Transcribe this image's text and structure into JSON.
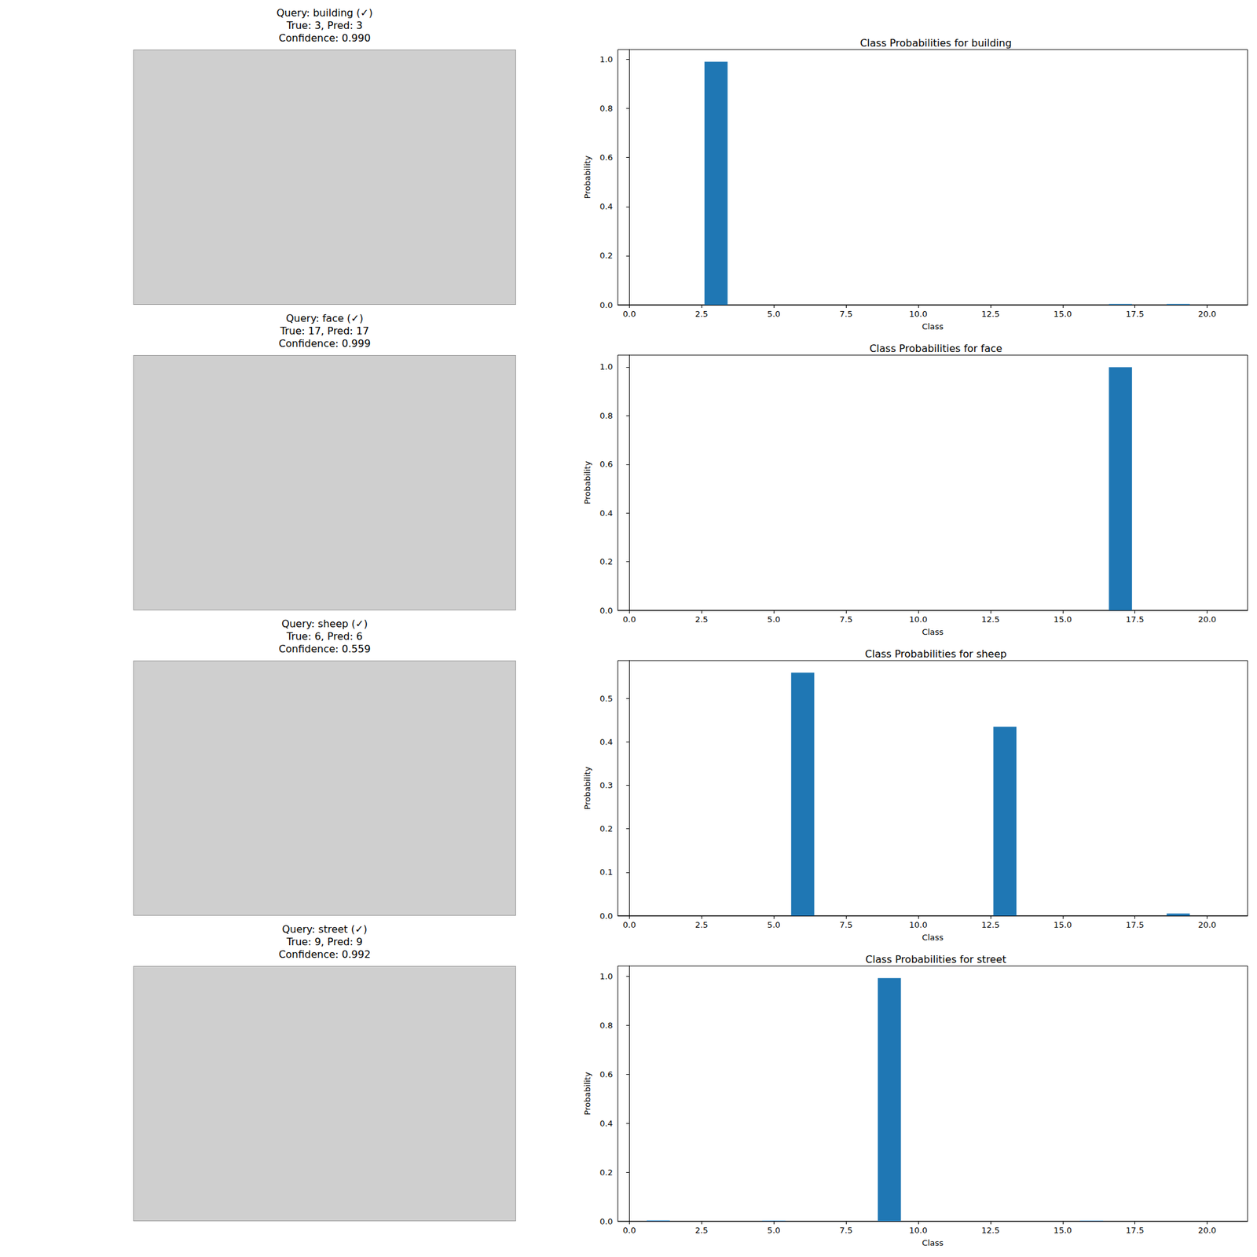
{
  "chart_data": [
    {
      "type": "bar",
      "title": "Class Probabilities for building",
      "x_label": "Class",
      "y_label": "Probability",
      "x": [
        0,
        1,
        2,
        3,
        4,
        5,
        6,
        7,
        8,
        9,
        10,
        11,
        12,
        13,
        14,
        15,
        16,
        17,
        18,
        19,
        20,
        21
      ],
      "values": [
        0,
        0,
        0,
        0.99,
        0,
        0,
        0,
        0,
        0,
        0,
        0,
        0,
        0,
        0,
        0,
        0,
        0,
        0.003,
        0,
        0.003,
        0,
        0
      ],
      "color": "#1f77b4",
      "grid": false,
      "xlim": [
        -0.4,
        21.4
      ],
      "xticks": [
        {
          "value": 0,
          "label": "0.0"
        },
        2.5,
        {
          "value": 5,
          "label": "5.0"
        },
        7.5,
        {
          "value": 10,
          "label": "10.0"
        },
        12.5,
        {
          "value": 15,
          "label": "15.0"
        },
        17.5,
        {
          "value": 20,
          "label": "20.0"
        }
      ],
      "ylim": [
        0,
        1.0395
      ],
      "yticks": [
        {
          "value": 0,
          "label": "0.0"
        },
        0.2,
        0.4,
        0.6,
        0.8,
        {
          "value": 1,
          "label": "1.0"
        }
      ]
    },
    {
      "type": "bar",
      "title": "Class Probabilities for face",
      "x_label": "Class",
      "y_label": "Probability",
      "x": [
        0,
        1,
        2,
        3,
        4,
        5,
        6,
        7,
        8,
        9,
        10,
        11,
        12,
        13,
        14,
        15,
        16,
        17,
        18,
        19,
        20,
        21
      ],
      "values": [
        0,
        0,
        0,
        0,
        0,
        0,
        0,
        0,
        0,
        0,
        0,
        0,
        0,
        0,
        0,
        0,
        0,
        0.999,
        0,
        0,
        0,
        0
      ],
      "color": "#1f77b4",
      "grid": false,
      "xlim": [
        -0.4,
        21.4
      ],
      "xticks": [
        {
          "value": 0,
          "label": "0.0"
        },
        2.5,
        {
          "value": 5,
          "label": "5.0"
        },
        7.5,
        {
          "value": 10,
          "label": "10.0"
        },
        12.5,
        {
          "value": 15,
          "label": "15.0"
        },
        17.5,
        {
          "value": 20,
          "label": "20.0"
        }
      ],
      "ylim": [
        0,
        1.049
      ],
      "yticks": [
        {
          "value": 0,
          "label": "0.0"
        },
        0.2,
        0.4,
        0.6,
        0.8,
        {
          "value": 1,
          "label": "1.0"
        }
      ]
    },
    {
      "type": "bar",
      "title": "Class Probabilities for sheep",
      "x_label": "Class",
      "y_label": "Probability",
      "x": [
        0,
        1,
        2,
        3,
        4,
        5,
        6,
        7,
        8,
        9,
        10,
        11,
        12,
        13,
        14,
        15,
        16,
        17,
        18,
        19,
        20,
        21
      ],
      "values": [
        0,
        0,
        0,
        0,
        0,
        0,
        0.559,
        0,
        0,
        0,
        0,
        0,
        0,
        0.435,
        0,
        0,
        0,
        0,
        0,
        0.005,
        0,
        0
      ],
      "color": "#1f77b4",
      "grid": false,
      "xlim": [
        -0.4,
        21.4
      ],
      "xticks": [
        {
          "value": 0,
          "label": "0.0"
        },
        2.5,
        {
          "value": 5,
          "label": "5.0"
        },
        7.5,
        {
          "value": 10,
          "label": "10.0"
        },
        12.5,
        {
          "value": 15,
          "label": "15.0"
        },
        17.5,
        {
          "value": 20,
          "label": "20.0"
        }
      ],
      "ylim": [
        0,
        0.587
      ],
      "yticks": [
        {
          "value": 0,
          "label": "0.0"
        },
        0.1,
        0.2,
        0.3,
        0.4,
        0.5
      ]
    },
    {
      "type": "bar",
      "title": "Class Probabilities for street",
      "x_label": "Class",
      "y_label": "Probability",
      "x": [
        0,
        1,
        2,
        3,
        4,
        5,
        6,
        7,
        8,
        9,
        10,
        11,
        12,
        13,
        14,
        15,
        16,
        17,
        18,
        19,
        20,
        21
      ],
      "values": [
        0,
        0.003,
        0,
        0,
        0,
        0.002,
        0,
        0,
        0,
        0.992,
        0,
        0,
        0,
        0,
        0,
        0,
        0.002,
        0,
        0,
        0,
        0,
        0
      ],
      "color": "#1f77b4",
      "grid": false,
      "xlim": [
        -0.4,
        21.4
      ],
      "xticks": [
        {
          "value": 0,
          "label": "0.0"
        },
        2.5,
        {
          "value": 5,
          "label": "5.0"
        },
        7.5,
        {
          "value": 10,
          "label": "10.0"
        },
        12.5,
        {
          "value": 15,
          "label": "15.0"
        },
        17.5,
        {
          "value": 20,
          "label": "20.0"
        }
      ],
      "ylim": [
        0,
        1.0416
      ],
      "yticks": [
        {
          "value": 0,
          "label": "0.0"
        },
        0.2,
        0.4,
        0.6,
        0.8,
        {
          "value": 1,
          "label": "1.0"
        }
      ]
    }
  ],
  "images": [
    {
      "title": "Query: building (✓)\nTrue: 3, Pred: 3\nConfidence: 0.990"
    },
    {
      "title": "Query: face (✓)\nTrue: 17, Pred: 17\nConfidence: 0.999"
    },
    {
      "title": "Query: sheep (✓)\nTrue: 6, Pred: 6\nConfidence: 0.559"
    },
    {
      "title": "Query: street (✓)\nTrue: 9, Pred: 9\nConfidence: 0.992"
    }
  ]
}
